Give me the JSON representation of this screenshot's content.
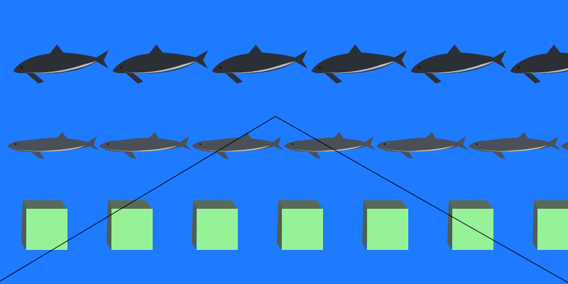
{
  "scene": {
    "background_color": "#1e7bff",
    "rows": [
      {
        "kind": "shark",
        "count": 6,
        "body_color": "#2b2f36",
        "belly_color": "#cfd6df"
      },
      {
        "kind": "dolphin",
        "count": 7,
        "body_color": "#4a5058",
        "belly_color": "#d8c8a4"
      },
      {
        "kind": "cube",
        "count": 7,
        "face_color": "#96f296",
        "side_color": "#4e5e50",
        "top_color": "#5a6a5a"
      }
    ],
    "guide_line_color": "#000000"
  }
}
